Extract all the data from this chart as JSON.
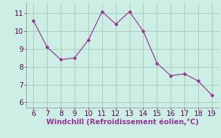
{
  "x": [
    6,
    7,
    8,
    9,
    10,
    11,
    12,
    13,
    14,
    15,
    16,
    17,
    18,
    19
  ],
  "y": [
    10.6,
    9.1,
    8.4,
    8.5,
    9.5,
    11.1,
    10.4,
    11.1,
    10.0,
    8.2,
    7.5,
    7.6,
    7.2,
    6.4
  ],
  "xlabel": "Windchill (Refroidissement éolien,°C)",
  "xlim": [
    5.5,
    19.5
  ],
  "ylim": [
    5.7,
    11.6
  ],
  "xticks": [
    6,
    7,
    8,
    9,
    10,
    11,
    12,
    13,
    14,
    15,
    16,
    17,
    18,
    19
  ],
  "yticks": [
    6,
    7,
    8,
    9,
    10,
    11
  ],
  "line_color": "#993399",
  "marker_color": "#993399",
  "bg_color": "#cceee4",
  "grid_color": "#aaccbb",
  "xlabel_fontsize": 7.5,
  "tick_fontsize": 7.5
}
